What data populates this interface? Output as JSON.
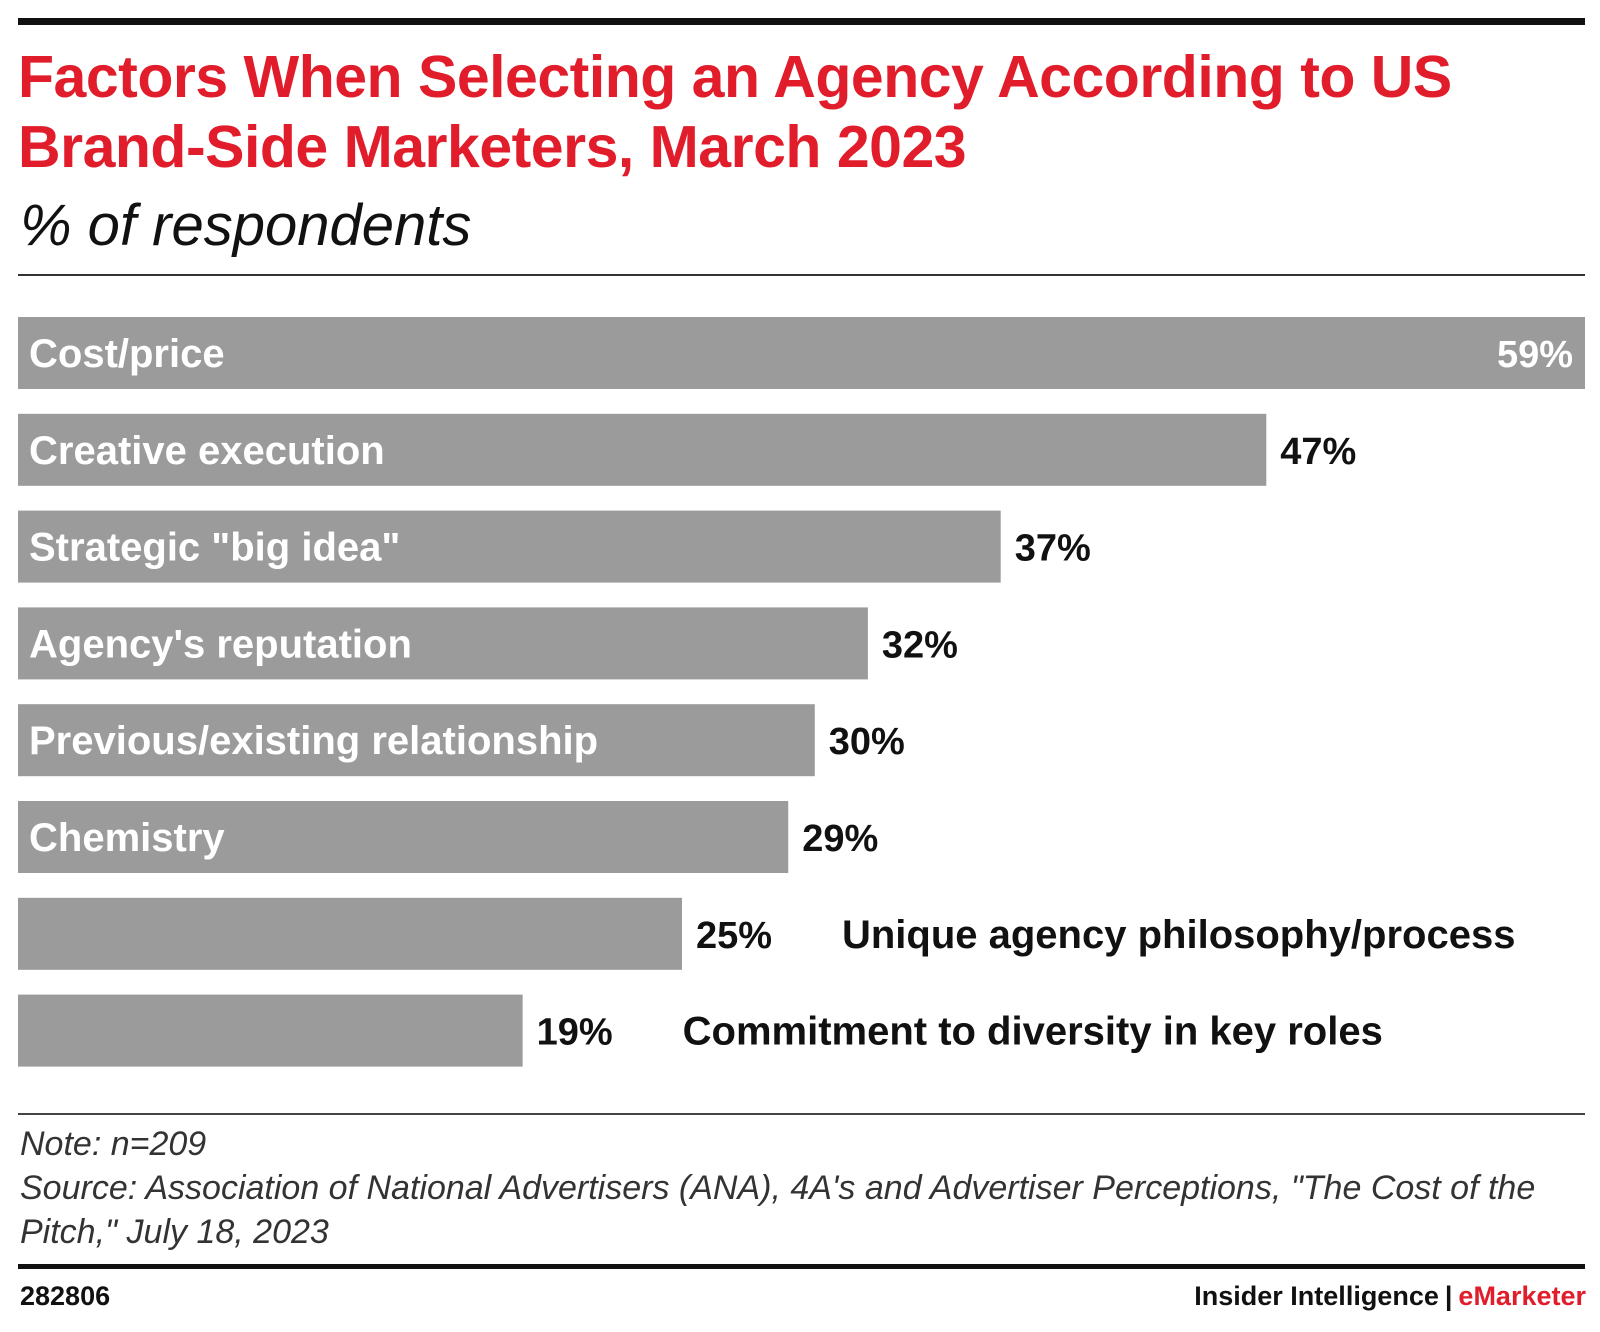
{
  "header": {
    "title": "Factors When Selecting an Agency According to US Brand-Side Marketers, March 2023",
    "subtitle": "% of respondents"
  },
  "chart_data": {
    "type": "bar",
    "orientation": "horizontal",
    "categories": [
      "Cost/price",
      "Creative execution",
      "Strategic \"big idea\"",
      "Agency's reputation",
      "Previous/existing relationship",
      "Chemistry",
      "Unique agency philosophy/process",
      "Commitment to diversity in key roles"
    ],
    "values": [
      59,
      47,
      37,
      32,
      30,
      29,
      25,
      19
    ],
    "value_labels": [
      "59%",
      "47%",
      "37%",
      "32%",
      "30%",
      "29%",
      "25%",
      "19%"
    ],
    "unit": "%",
    "xlim": [
      0,
      59
    ],
    "grid": false,
    "bar_color": "#9b9b9b"
  },
  "footer": {
    "note": "Note: n=209",
    "source": "Source: Association of National Advertisers (ANA), 4A's and Advertiser Perceptions, \"The Cost of the Pitch,\" July 18, 2023",
    "chart_id": "282806",
    "brand_left": "Insider Intelligence",
    "brand_sep": "|",
    "brand_right": "eMarketer"
  },
  "colors": {
    "accent": "#e11d2b",
    "bar": "#9b9b9b"
  }
}
